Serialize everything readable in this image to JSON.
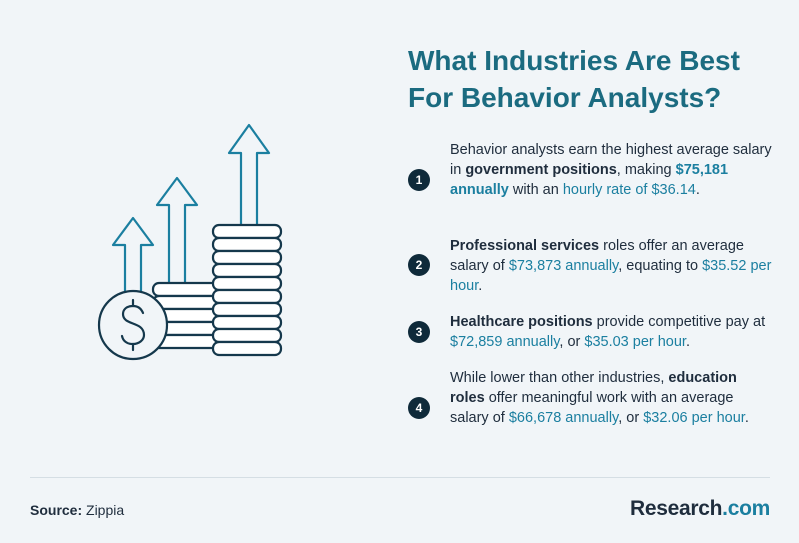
{
  "title_line1": "What Industries Are Best",
  "title_line2": "For Behavior Analysts?",
  "items": [
    {
      "num": "1",
      "t1": "Behavior analysts earn the highest average salary in ",
      "b1": "government positions",
      "t2": ", making ",
      "hb1": "$75,181 annually",
      "t3": " with an ",
      "h1": "hourly rate of $36.14",
      "t4": "."
    },
    {
      "num": "2",
      "b1": "Professional services",
      "t1": " roles offer an average salary of ",
      "h1": "$73,873 annually",
      "t2": ", equating to ",
      "h2": "$35.52 per hour",
      "t3": "."
    },
    {
      "num": "3",
      "b1": "Healthcare positions",
      "t1": " provide competitive pay at ",
      "h1": "$72,859 annually",
      "t2": ", or ",
      "h2": "$35.03 per hour",
      "t3": "."
    },
    {
      "num": "4",
      "t1": "While lower than other industries, ",
      "b1": "education roles",
      "t2": " offer meaningful work with an average salary of ",
      "h1": "$66,678 annually",
      "t3": ", or ",
      "h2": "$32.06 per hour",
      "t4": "."
    }
  ],
  "source_label": "Source:",
  "source_value": " Zippia",
  "brand_name": "Research",
  "brand_suffix": ".com",
  "colors": {
    "accent": "#1b7fa0",
    "title": "#1b6b80",
    "dark": "#0f2a3a",
    "background": "#f1f5f8"
  },
  "icons": [
    "money-growth-illustration",
    "dollar-coin-icon",
    "up-arrow-icon"
  ]
}
